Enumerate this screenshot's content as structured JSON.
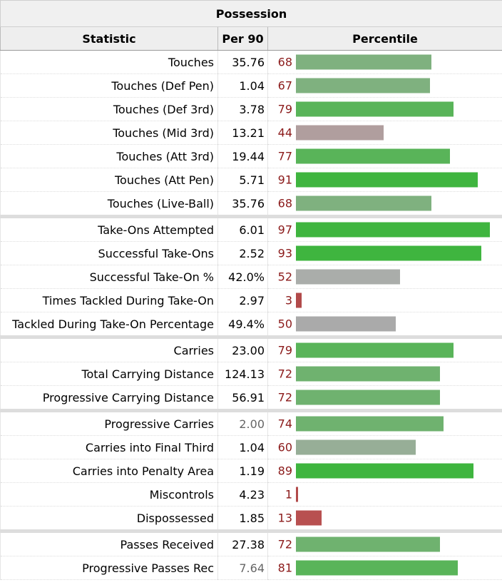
{
  "table": {
    "caption": "Possession",
    "headers": {
      "statistic": "Statistic",
      "per90": "Per 90",
      "percentile": "Percentile"
    },
    "rows": [
      {
        "stat": "Touches",
        "per90": "35.76",
        "percentile": 68,
        "color": "#7fb17f",
        "group_start": false,
        "dim": false
      },
      {
        "stat": "Touches (Def Pen)",
        "per90": "1.04",
        "percentile": 67,
        "color": "#7fb17f",
        "group_start": false,
        "dim": false
      },
      {
        "stat": "Touches (Def 3rd)",
        "per90": "3.78",
        "percentile": 79,
        "color": "#59b459",
        "group_start": false,
        "dim": false
      },
      {
        "stat": "Touches (Mid 3rd)",
        "per90": "13.21",
        "percentile": 44,
        "color": "#b09e9e",
        "group_start": false,
        "dim": false
      },
      {
        "stat": "Touches (Att 3rd)",
        "per90": "19.44",
        "percentile": 77,
        "color": "#59b459",
        "group_start": false,
        "dim": false
      },
      {
        "stat": "Touches (Att Pen)",
        "per90": "5.71",
        "percentile": 91,
        "color": "#3fb53f",
        "group_start": false,
        "dim": false
      },
      {
        "stat": "Touches (Live-Ball)",
        "per90": "35.76",
        "percentile": 68,
        "color": "#7fb17f",
        "group_start": false,
        "dim": false
      },
      {
        "stat": "Take-Ons Attempted",
        "per90": "6.01",
        "percentile": 97,
        "color": "#3fb53f",
        "group_start": true,
        "dim": false
      },
      {
        "stat": "Successful Take-Ons",
        "per90": "2.52",
        "percentile": 93,
        "color": "#3fb53f",
        "group_start": false,
        "dim": false
      },
      {
        "stat": "Successful Take-On %",
        "per90": "42.0%",
        "percentile": 52,
        "color": "#aaadaa",
        "group_start": false,
        "dim": false
      },
      {
        "stat": "Times Tackled During Take-On",
        "per90": "2.97",
        "percentile": 3,
        "color": "#b24a4a",
        "group_start": false,
        "dim": false
      },
      {
        "stat": "Tackled During Take-On Percentage",
        "per90": "49.4%",
        "percentile": 50,
        "color": "#aaaaaa",
        "group_start": false,
        "dim": false
      },
      {
        "stat": "Carries",
        "per90": "23.00",
        "percentile": 79,
        "color": "#59b459",
        "group_start": true,
        "dim": false
      },
      {
        "stat": "Total Carrying Distance",
        "per90": "124.13",
        "percentile": 72,
        "color": "#6fb26f",
        "group_start": false,
        "dim": false
      },
      {
        "stat": "Progressive Carrying Distance",
        "per90": "56.91",
        "percentile": 72,
        "color": "#6fb26f",
        "group_start": false,
        "dim": false
      },
      {
        "stat": "Progressive Carries",
        "per90": "2.00",
        "percentile": 74,
        "color": "#6fb26f",
        "group_start": true,
        "dim": true
      },
      {
        "stat": "Carries into Final Third",
        "per90": "1.04",
        "percentile": 60,
        "color": "#97ae97",
        "group_start": false,
        "dim": false
      },
      {
        "stat": "Carries into Penalty Area",
        "per90": "1.19",
        "percentile": 89,
        "color": "#3fb53f",
        "group_start": false,
        "dim": false
      },
      {
        "stat": "Miscontrols",
        "per90": "4.23",
        "percentile": 1,
        "color": "#b24a4a",
        "group_start": false,
        "dim": false
      },
      {
        "stat": "Dispossessed",
        "per90": "1.85",
        "percentile": 13,
        "color": "#b85050",
        "group_start": false,
        "dim": false
      },
      {
        "stat": "Passes Received",
        "per90": "27.38",
        "percentile": 72,
        "color": "#6fb26f",
        "group_start": true,
        "dim": false
      },
      {
        "stat": "Progressive Passes Rec",
        "per90": "7.64",
        "percentile": 81,
        "color": "#59b459",
        "group_start": false,
        "dim": true
      }
    ]
  }
}
